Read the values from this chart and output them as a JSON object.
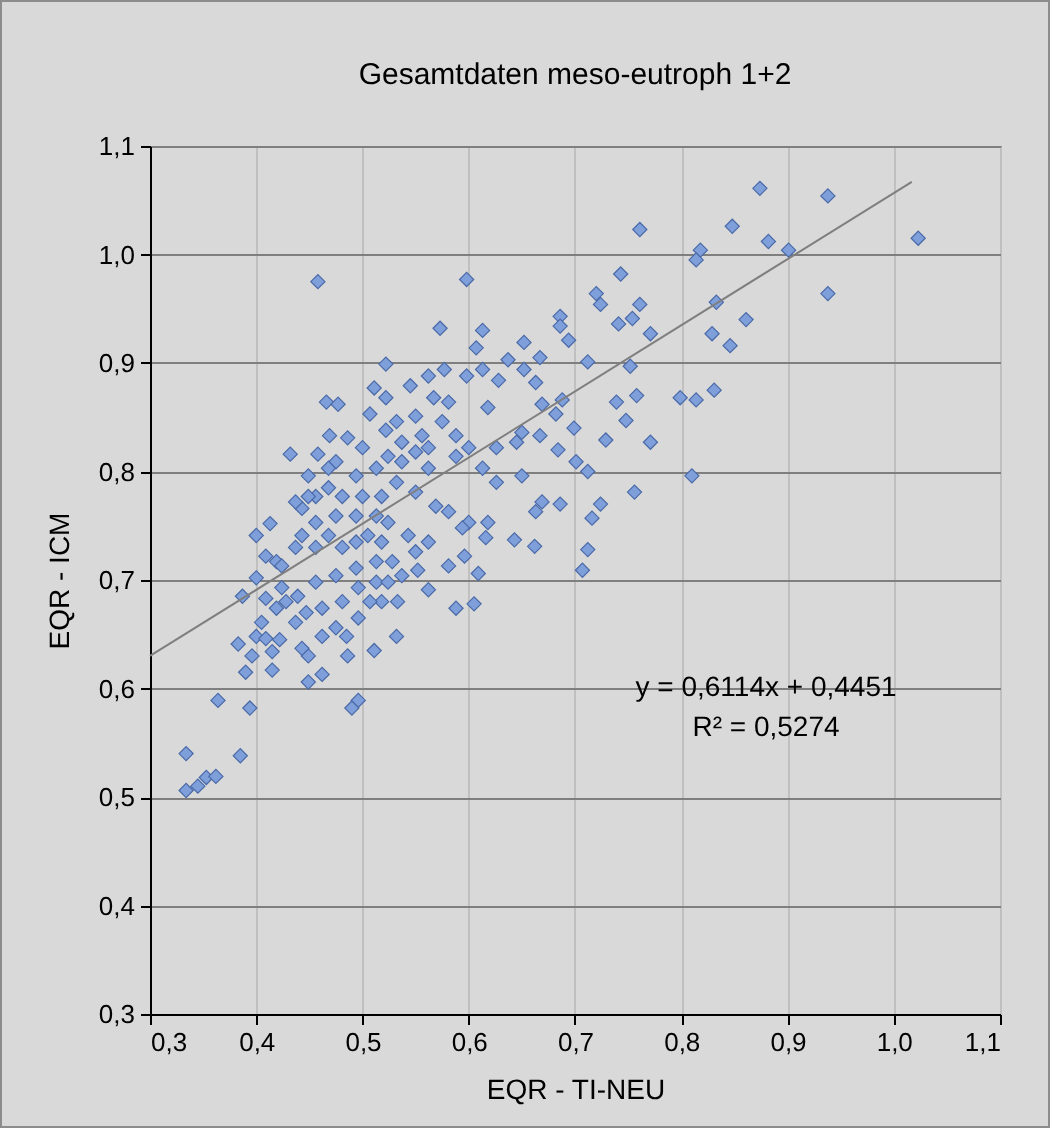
{
  "chart_data": {
    "type": "scatter",
    "title": "Gesamtdaten meso-eutroph 1+2",
    "xlabel": "EQR - TI-NEU",
    "ylabel": "EQR - ICM",
    "xlim": [
      0.3,
      1.1
    ],
    "ylim": [
      0.3,
      1.1
    ],
    "xticks": [
      {
        "value": 0.3,
        "label": "0,3"
      },
      {
        "value": 0.4,
        "label": "0,4"
      },
      {
        "value": 0.5,
        "label": "0,5"
      },
      {
        "value": 0.6,
        "label": "0,6"
      },
      {
        "value": 0.7,
        "label": "0,7"
      },
      {
        "value": 0.8,
        "label": "0,8"
      },
      {
        "value": 0.9,
        "label": "0,9"
      },
      {
        "value": 1.0,
        "label": "1,0"
      },
      {
        "value": 1.1,
        "label": "1,1"
      }
    ],
    "yticks": [
      {
        "value": 0.3,
        "label": "0,3"
      },
      {
        "value": 0.4,
        "label": "0,4"
      },
      {
        "value": 0.5,
        "label": "0,5"
      },
      {
        "value": 0.6,
        "label": "0,6"
      },
      {
        "value": 0.7,
        "label": "0,7"
      },
      {
        "value": 0.8,
        "label": "0,8"
      },
      {
        "value": 0.9,
        "label": "0,9"
      },
      {
        "value": 1.0,
        "label": "1,0"
      },
      {
        "value": 1.1,
        "label": "1,1"
      }
    ],
    "grid": true,
    "series": [
      {
        "marker": "diamond",
        "color": "#7f9fdb",
        "x": [
          0.458,
          0.598,
          0.761,
          0.874,
          0.938,
          1.023,
          0.848,
          0.882,
          0.901,
          0.818,
          0.814,
          0.938,
          0.743,
          0.72,
          0.724,
          0.761,
          0.754,
          0.741,
          0.771,
          0.833,
          0.861,
          0.829,
          0.846,
          0.686,
          0.694,
          0.573,
          0.613,
          0.607,
          0.652,
          0.667,
          0.712,
          0.752,
          0.758,
          0.799,
          0.814,
          0.831,
          0.739,
          0.748,
          0.771,
          0.729,
          0.522,
          0.686,
          0.81,
          0.756,
          0.716,
          0.712,
          0.707,
          0.724,
          0.686,
          0.662,
          0.643,
          0.609,
          0.605,
          0.588,
          0.562,
          0.532,
          0.511,
          0.496,
          0.49,
          0.449,
          0.462,
          0.415,
          0.39,
          0.364,
          0.394,
          0.334,
          0.385,
          0.334,
          0.345,
          0.353,
          0.362,
          0.383,
          0.387,
          0.4,
          0.413,
          0.432,
          0.458,
          0.466,
          0.477,
          0.469,
          0.486,
          0.511,
          0.522,
          0.507,
          0.545,
          0.562,
          0.577,
          0.567,
          0.581,
          0.598,
          0.613,
          0.628,
          0.637,
          0.652,
          0.663,
          0.669,
          0.682,
          0.688,
          0.699,
          0.667,
          0.65,
          0.684,
          0.618,
          0.55,
          0.532,
          0.575,
          0.588,
          0.556,
          0.537,
          0.522,
          0.5,
          0.6,
          0.626,
          0.645,
          0.475,
          0.494,
          0.513,
          0.537,
          0.562,
          0.588,
          0.613,
          0.626,
          0.65,
          0.669,
          0.663,
          0.701,
          0.712,
          0.55,
          0.569,
          0.581,
          0.6,
          0.618,
          0.616,
          0.594,
          0.596,
          0.581,
          0.562,
          0.55,
          0.543,
          0.552,
          0.533,
          0.518,
          0.507,
          0.496,
          0.485,
          0.486,
          0.475,
          0.462,
          0.449,
          0.443,
          0.437,
          0.447,
          0.462,
          0.481,
          0.496,
          0.513,
          0.524,
          0.537,
          0.528,
          0.513,
          0.494,
          0.475,
          0.456,
          0.439,
          0.428,
          0.419,
          0.405,
          0.4,
          0.409,
          0.422,
          0.415,
          0.396,
          0.424,
          0.409,
          0.4,
          0.419,
          0.409,
          0.424,
          0.437,
          0.443,
          0.456,
          0.468,
          0.481,
          0.494,
          0.505,
          0.518,
          0.524,
          0.513,
          0.494,
          0.475,
          0.456,
          0.443,
          0.456,
          0.468,
          0.481,
          0.5,
          0.518,
          0.532,
          0.449,
          0.437,
          0.468,
          0.524,
          0.55,
          0.562,
          0.449
        ],
        "values": [
          0.975,
          0.977,
          1.023,
          1.061,
          1.054,
          1.015,
          1.026,
          1.012,
          1.004,
          1.004,
          0.995,
          0.964,
          0.982,
          0.964,
          0.954,
          0.954,
          0.941,
          0.936,
          0.927,
          0.956,
          0.94,
          0.927,
          0.916,
          0.943,
          0.921,
          0.932,
          0.93,
          0.914,
          0.919,
          0.905,
          0.901,
          0.897,
          0.87,
          0.868,
          0.866,
          0.875,
          0.864,
          0.847,
          0.827,
          0.829,
          0.899,
          0.934,
          0.796,
          0.781,
          0.757,
          0.728,
          0.709,
          0.77,
          0.77,
          0.731,
          0.737,
          0.706,
          0.678,
          0.674,
          0.691,
          0.648,
          0.635,
          0.589,
          0.582,
          0.606,
          0.613,
          0.617,
          0.615,
          0.589,
          0.582,
          0.54,
          0.538,
          0.506,
          0.51,
          0.518,
          0.519,
          0.641,
          0.685,
          0.741,
          0.752,
          0.816,
          0.816,
          0.864,
          0.862,
          0.833,
          0.831,
          0.877,
          0.868,
          0.853,
          0.879,
          0.888,
          0.894,
          0.868,
          0.864,
          0.888,
          0.894,
          0.884,
          0.903,
          0.894,
          0.882,
          0.862,
          0.853,
          0.866,
          0.84,
          0.833,
          0.836,
          0.82,
          0.859,
          0.851,
          0.846,
          0.846,
          0.833,
          0.833,
          0.827,
          0.838,
          0.822,
          0.822,
          0.822,
          0.827,
          0.809,
          0.796,
          0.803,
          0.809,
          0.803,
          0.814,
          0.803,
          0.79,
          0.796,
          0.772,
          0.763,
          0.809,
          0.8,
          0.781,
          0.768,
          0.763,
          0.753,
          0.753,
          0.739,
          0.748,
          0.722,
          0.713,
          0.735,
          0.726,
          0.741,
          0.709,
          0.68,
          0.68,
          0.68,
          0.665,
          0.648,
          0.63,
          0.656,
          0.648,
          0.63,
          0.637,
          0.661,
          0.67,
          0.674,
          0.68,
          0.693,
          0.698,
          0.698,
          0.704,
          0.717,
          0.717,
          0.711,
          0.704,
          0.698,
          0.685,
          0.68,
          0.674,
          0.661,
          0.648,
          0.646,
          0.645,
          0.634,
          0.63,
          0.693,
          0.683,
          0.702,
          0.717,
          0.722,
          0.713,
          0.73,
          0.741,
          0.73,
          0.741,
          0.73,
          0.735,
          0.741,
          0.735,
          0.753,
          0.759,
          0.759,
          0.759,
          0.753,
          0.766,
          0.777,
          0.785,
          0.777,
          0.777,
          0.777,
          0.79,
          0.796,
          0.772,
          0.803,
          0.814,
          0.818,
          0.822,
          0.777
        ]
      },
      {
        "type": "line",
        "color": "#7f7f7f",
        "x": [
          0.3,
          1.017
        ],
        "values": [
          0.63,
          1.067
        ]
      }
    ],
    "annotations": [
      "y = 0,6114x + 0,4451",
      "R² = 0,5274"
    ]
  }
}
